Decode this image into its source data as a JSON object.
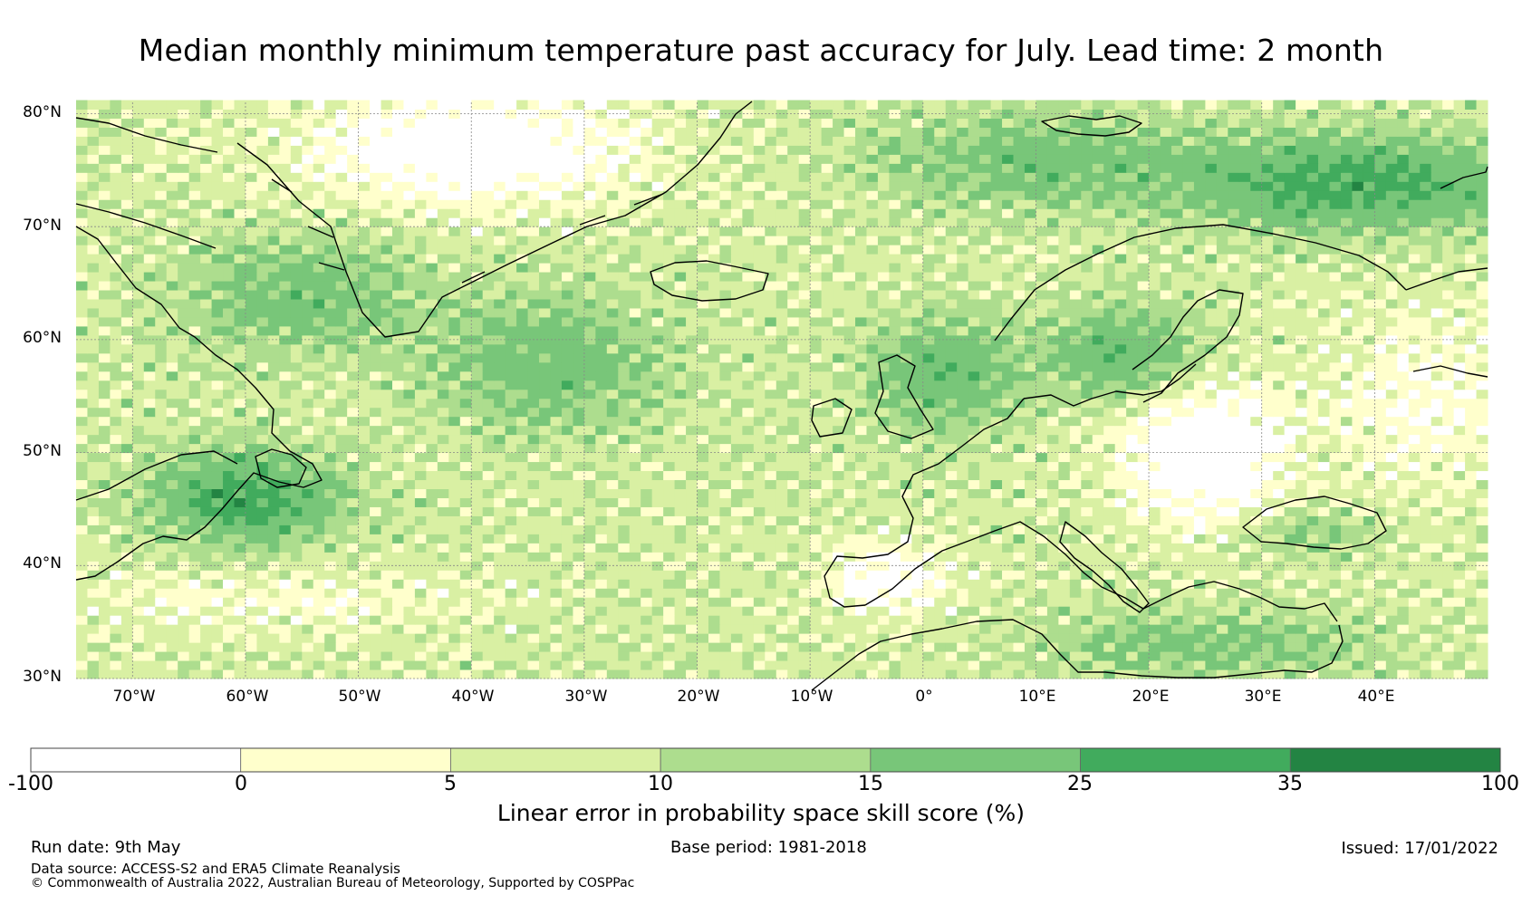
{
  "title": "Median monthly minimum temperature past accuracy for July. Lead time: 2 month",
  "map": {
    "lon_range": [
      -75,
      50
    ],
    "lat_range": [
      30,
      81
    ],
    "lat_ticks": [
      {
        "value": 80,
        "label": "80°N"
      },
      {
        "value": 70,
        "label": "70°N"
      },
      {
        "value": 60,
        "label": "60°N"
      },
      {
        "value": 50,
        "label": "50°N"
      },
      {
        "value": 40,
        "label": "40°N"
      },
      {
        "value": 30,
        "label": "30°N"
      }
    ],
    "lon_ticks": [
      {
        "value": -70,
        "label": "70°W"
      },
      {
        "value": -60,
        "label": "60°W"
      },
      {
        "value": -50,
        "label": "50°W"
      },
      {
        "value": -40,
        "label": "40°W"
      },
      {
        "value": -30,
        "label": "30°W"
      },
      {
        "value": -20,
        "label": "20°W"
      },
      {
        "value": -10,
        "label": "10°W"
      },
      {
        "value": 0,
        "label": "0°"
      },
      {
        "value": 10,
        "label": "10°E"
      },
      {
        "value": 20,
        "label": "20°E"
      },
      {
        "value": 30,
        "label": "30°E"
      },
      {
        "value": 40,
        "label": "40°E"
      }
    ],
    "grid": true,
    "coastlines": true
  },
  "colorbar": {
    "label": "Linear error in probability space skill score (%)",
    "bins": [
      {
        "from": -100,
        "to": 0,
        "color": "#ffffff"
      },
      {
        "from": 0,
        "to": 5,
        "color": "#ffffcc"
      },
      {
        "from": 5,
        "to": 10,
        "color": "#d9f0a3"
      },
      {
        "from": 10,
        "to": 15,
        "color": "#addd8e"
      },
      {
        "from": 15,
        "to": 25,
        "color": "#78c679"
      },
      {
        "from": 25,
        "to": 35,
        "color": "#41ab5d"
      },
      {
        "from": 35,
        "to": 100,
        "color": "#238443"
      }
    ],
    "tick_labels": [
      "-100",
      "0",
      "5",
      "10",
      "15",
      "25",
      "35",
      "100"
    ]
  },
  "footer": {
    "run_date": "Run date: 9th May",
    "base_period": "Base period: 1981-2018",
    "issued": "Issued: 17/01/2022",
    "data_source": "Data source: ACCESS-S2 and ERA5 Climate Reanalysis",
    "copyright": "© Commonwealth of Australia 2022, Australian Bureau of Meteorology, Supported by COSPPac"
  }
}
